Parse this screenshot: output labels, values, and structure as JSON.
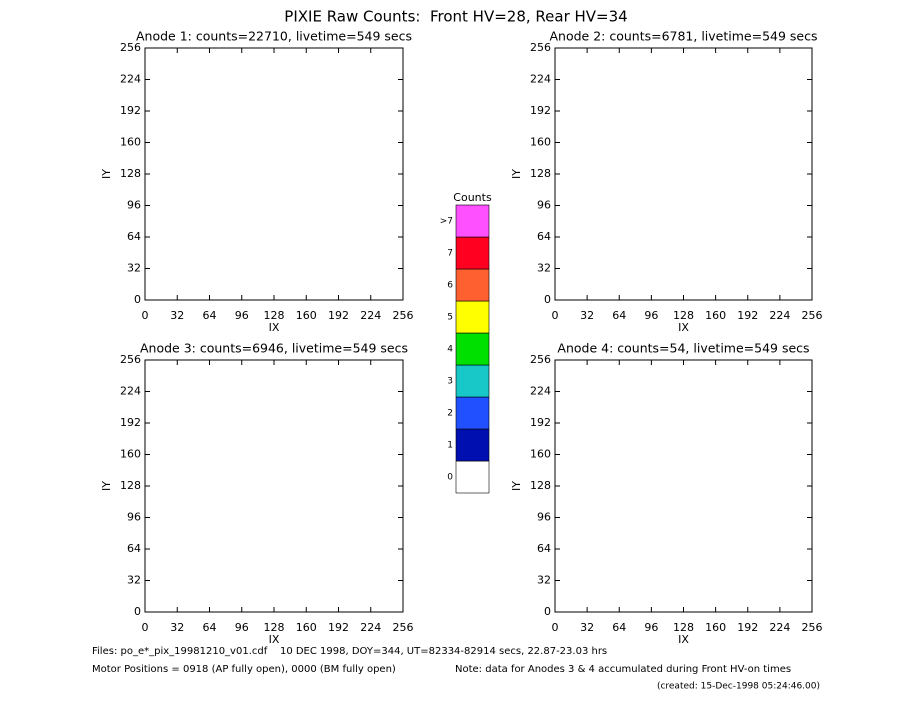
{
  "title": "PIXIE Raw Counts:  Front HV=28, Rear HV=34",
  "chart_data": [
    {
      "type": "heatmap",
      "title": "Anode 1: counts=22710, livetime=549 secs",
      "xlabel": "IX",
      "ylabel": "IY",
      "xlim": [
        0,
        256
      ],
      "ylim": [
        0,
        256
      ],
      "xticks": [
        0,
        32,
        64,
        96,
        128,
        160,
        192,
        224,
        256
      ],
      "yticks": [
        0,
        32,
        64,
        96,
        128,
        160,
        192,
        224,
        256
      ]
    },
    {
      "type": "heatmap",
      "title": "Anode 2: counts=6781, livetime=549 secs",
      "xlabel": "IX",
      "ylabel": "IY",
      "xlim": [
        0,
        256
      ],
      "ylim": [
        0,
        256
      ],
      "xticks": [
        0,
        32,
        64,
        96,
        128,
        160,
        192,
        224,
        256
      ],
      "yticks": [
        0,
        32,
        64,
        96,
        128,
        160,
        192,
        224,
        256
      ]
    },
    {
      "type": "heatmap",
      "title": "Anode 3: counts=6946, livetime=549 secs",
      "xlabel": "IX",
      "ylabel": "IY",
      "xlim": [
        0,
        256
      ],
      "ylim": [
        0,
        256
      ],
      "xticks": [
        0,
        32,
        64,
        96,
        128,
        160,
        192,
        224,
        256
      ],
      "yticks": [
        0,
        32,
        64,
        96,
        128,
        160,
        192,
        224,
        256
      ]
    },
    {
      "type": "heatmap",
      "title": "Anode 4: counts=54, livetime=549 secs",
      "xlabel": "IX",
      "ylabel": "IY",
      "xlim": [
        0,
        256
      ],
      "ylim": [
        0,
        256
      ],
      "xticks": [
        0,
        32,
        64,
        96,
        128,
        160,
        192,
        224,
        256
      ],
      "yticks": [
        0,
        32,
        64,
        96,
        128,
        160,
        192,
        224,
        256
      ]
    }
  ],
  "colorbar": {
    "title": "Counts",
    "labels": [
      "0",
      "1",
      "2",
      "3",
      "4",
      "5",
      "6",
      "7",
      ">7"
    ],
    "colors": [
      "#ffffff",
      "#0010b0",
      "#2050ff",
      "#18c8c8",
      "#00e000",
      "#ffff00",
      "#ff6030",
      "#ff0020",
      "#ff50ff"
    ]
  },
  "footer": {
    "files": "Files: po_e*_pix_19981210_v01.cdf    10 DEC 1998, DOY=344, UT=82334-82914 secs, 22.87-23.03 hrs",
    "motor": "Motor Positions = 0918 (AP fully open), 0000 (BM fully open)",
    "note": "Note: data for Anodes 3 & 4 accumulated during Front HV-on times",
    "created": "(created: 15-Dec-1998 05:24:46.00)"
  }
}
